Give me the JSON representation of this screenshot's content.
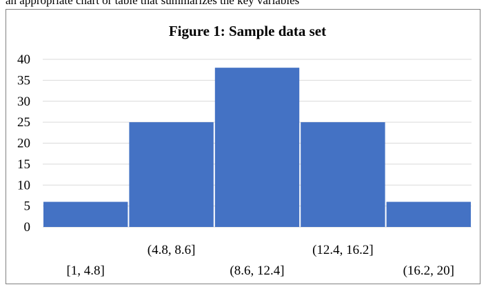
{
  "top_text": "an appropriate chart or table that summarizes the key variables",
  "chart_data": {
    "type": "bar",
    "title": "Figure 1: Sample data set",
    "categories": [
      "[1, 4.8]",
      "(4.8, 8.6]",
      "(8.6, 12.4]",
      "(12.4, 16.2]",
      "(16.2, 20]"
    ],
    "values": [
      6,
      25,
      38,
      25,
      6
    ],
    "xlabel": "",
    "ylabel": "",
    "ylim": [
      0,
      40
    ],
    "yticks": [
      0,
      5,
      10,
      15,
      20,
      25,
      30,
      35,
      40
    ],
    "grid": true,
    "legend": "none",
    "colors": {
      "bar": "#4472c4",
      "grid": "#d9d9d9",
      "border": "#7f7f7f"
    }
  }
}
